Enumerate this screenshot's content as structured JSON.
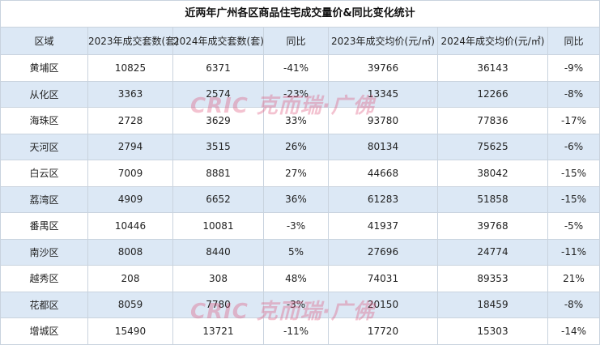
{
  "table": {
    "title": "近两年广州各区商品住宅成交量价&同比变化统计",
    "columns": [
      "区域",
      "2023年成交套数(套)",
      "2024年成交套数(套)",
      "同比",
      "2023年成交均价(元/㎡)",
      "2024年成交均价(元/㎡)",
      "同比"
    ],
    "rows": [
      [
        "黄埔区",
        "10825",
        "6371",
        "-41%",
        "39766",
        "36143",
        "-9%"
      ],
      [
        "从化区",
        "3363",
        "2574",
        "-23%",
        "13345",
        "12266",
        "-8%"
      ],
      [
        "海珠区",
        "2728",
        "3629",
        "33%",
        "93780",
        "77836",
        "-17%"
      ],
      [
        "天河区",
        "2794",
        "3515",
        "26%",
        "80134",
        "75625",
        "-6%"
      ],
      [
        "白云区",
        "7009",
        "8881",
        "27%",
        "44668",
        "38042",
        "-15%"
      ],
      [
        "荔湾区",
        "4909",
        "6652",
        "36%",
        "61283",
        "51858",
        "-15%"
      ],
      [
        "番禺区",
        "10446",
        "10081",
        "-3%",
        "41937",
        "39768",
        "-5%"
      ],
      [
        "南沙区",
        "8008",
        "8440",
        "5%",
        "27696",
        "24774",
        "-11%"
      ],
      [
        "越秀区",
        "208",
        "308",
        "48%",
        "74031",
        "89353",
        "21%"
      ],
      [
        "花都区",
        "8059",
        "7780",
        "-3%",
        "20150",
        "18459",
        "-8%"
      ],
      [
        "增城区",
        "15490",
        "13721",
        "-11%",
        "17720",
        "15303",
        "-14%"
      ]
    ],
    "watermark": "CRIC 克而瑞·广佛"
  }
}
